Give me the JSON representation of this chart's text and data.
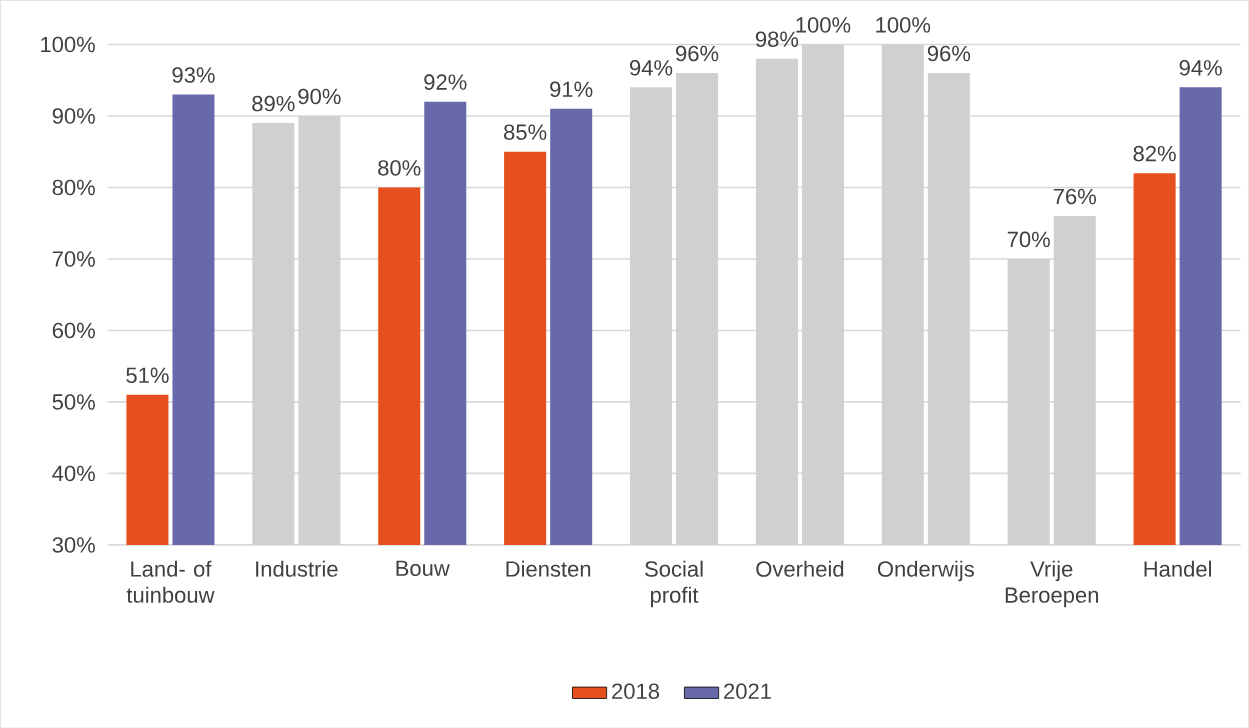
{
  "chart_data": {
    "type": "bar",
    "categories": [
      "Land- of tuinbouw",
      "Industrie",
      "Bouw",
      "Diensten",
      "Social profit",
      "Overheid",
      "Onderwijs",
      "Vrije Beroepen",
      "Handel"
    ],
    "series": [
      {
        "name": "2018",
        "color": "#e6501e",
        "colors": [
          "#e6501e",
          "#d0d0d0",
          "#e6501e",
          "#e6501e",
          "#d0d0d0",
          "#d0d0d0",
          "#d0d0d0",
          "#d0d0d0",
          "#e6501e"
        ],
        "values": [
          51,
          89,
          80,
          85,
          94,
          98,
          100,
          70,
          82
        ],
        "value_labels": [
          "51%",
          "89%",
          "80%",
          "85%",
          "94%",
          "98%",
          "100%",
          "70%",
          "82%"
        ]
      },
      {
        "name": "2021",
        "color": "#6769ab",
        "colors": [
          "#6769ab",
          "#d0d0d0",
          "#6769ab",
          "#6769ab",
          "#d0d0d0",
          "#d0d0d0",
          "#d0d0d0",
          "#d0d0d0",
          "#6769ab"
        ],
        "values": [
          93,
          90,
          92,
          91,
          96,
          100,
          96,
          76,
          94
        ],
        "value_labels": [
          "93%",
          "90%",
          "92%",
          "91%",
          "96%",
          "100%",
          "96%",
          "76%",
          "94%"
        ]
      }
    ],
    "ylim": [
      30,
      100
    ],
    "yticks": [
      {
        "value": 30,
        "label": "30%"
      },
      {
        "value": 40,
        "label": "40%"
      },
      {
        "value": 50,
        "label": "50%"
      },
      {
        "value": 60,
        "label": "60%"
      },
      {
        "value": 70,
        "label": "70%"
      },
      {
        "value": 80,
        "label": "80%"
      },
      {
        "value": 90,
        "label": "90%"
      },
      {
        "value": 100,
        "label": "100%"
      }
    ],
    "grid": "y",
    "legend": "bottom"
  }
}
